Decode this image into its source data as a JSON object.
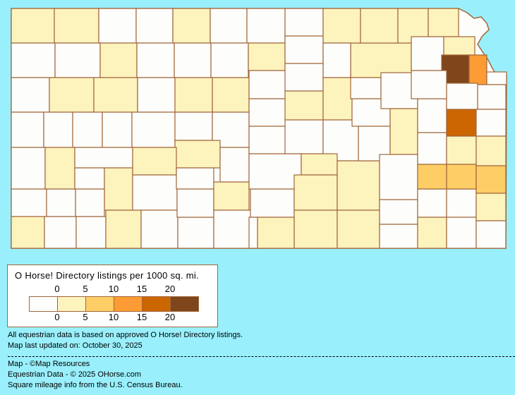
{
  "legend": {
    "title": "O Horse! Directory listings per 1000 sq. mi.",
    "ticks_top": [
      "0",
      "5",
      "10",
      "15",
      "20"
    ],
    "ticks_bottom": [
      "0",
      "5",
      "10",
      "15",
      "20"
    ],
    "bins": [
      {
        "range": "none",
        "color": "#fdfefb"
      },
      {
        "range": "0-5",
        "color": "#fdf3bd"
      },
      {
        "range": "5-10",
        "color": "#fdce66"
      },
      {
        "range": "10-15",
        "color": "#fd9b35"
      },
      {
        "range": "15-20",
        "color": "#cc6600"
      },
      {
        "range": "20+",
        "color": "#7f461b"
      }
    ]
  },
  "colors": {
    "background": "#99f0fc",
    "border": "#a0663a"
  },
  "counties_density_class": [
    1,
    1,
    0,
    0,
    1,
    0,
    0,
    0,
    1,
    1,
    1,
    1,
    0,
    0,
    1,
    0,
    0,
    0,
    1,
    0,
    0,
    0,
    1,
    0,
    1,
    1,
    0,
    1,
    1,
    0,
    0,
    0,
    0,
    0,
    0,
    0,
    1,
    0,
    0,
    1,
    0,
    0,
    1,
    1,
    0,
    0,
    0,
    0,
    1,
    0,
    0,
    1,
    0,
    0,
    0,
    0,
    1,
    0,
    0,
    0,
    0,
    1,
    0,
    0,
    1,
    0,
    0,
    0,
    0,
    0,
    1,
    0,
    1,
    1,
    1,
    1,
    1,
    0,
    1,
    0,
    0,
    0,
    0,
    0,
    2,
    0,
    1,
    4,
    5,
    3,
    0,
    0,
    0,
    0,
    1,
    2,
    0,
    0,
    0,
    1,
    2,
    1,
    0,
    1,
    0
  ],
  "footer": {
    "note1": "All equestrian data is based on approved O Horse! Directory listings.",
    "note2": "Map last updated on: October 30, 2025",
    "credit_map": "Map - ©Map Resources",
    "credit_data": "Equestrian Data - © 2025 OHorse.com",
    "credit_census": "Square mileage info from the U.S. Census Bureau."
  }
}
